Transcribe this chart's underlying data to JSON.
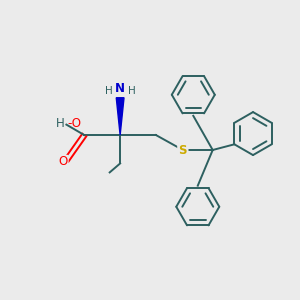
{
  "bg_color": "#ebebeb",
  "bond_color": "#2d6060",
  "colors": {
    "O": "#ff0000",
    "N": "#0000cd",
    "S": "#ccaa00",
    "C": "#2d6060",
    "H": "#2d6060"
  },
  "ring_r": 0.72,
  "lw": 1.4,
  "lw_inner": 1.4,
  "fs": 8.5,
  "fs_small": 7.5
}
